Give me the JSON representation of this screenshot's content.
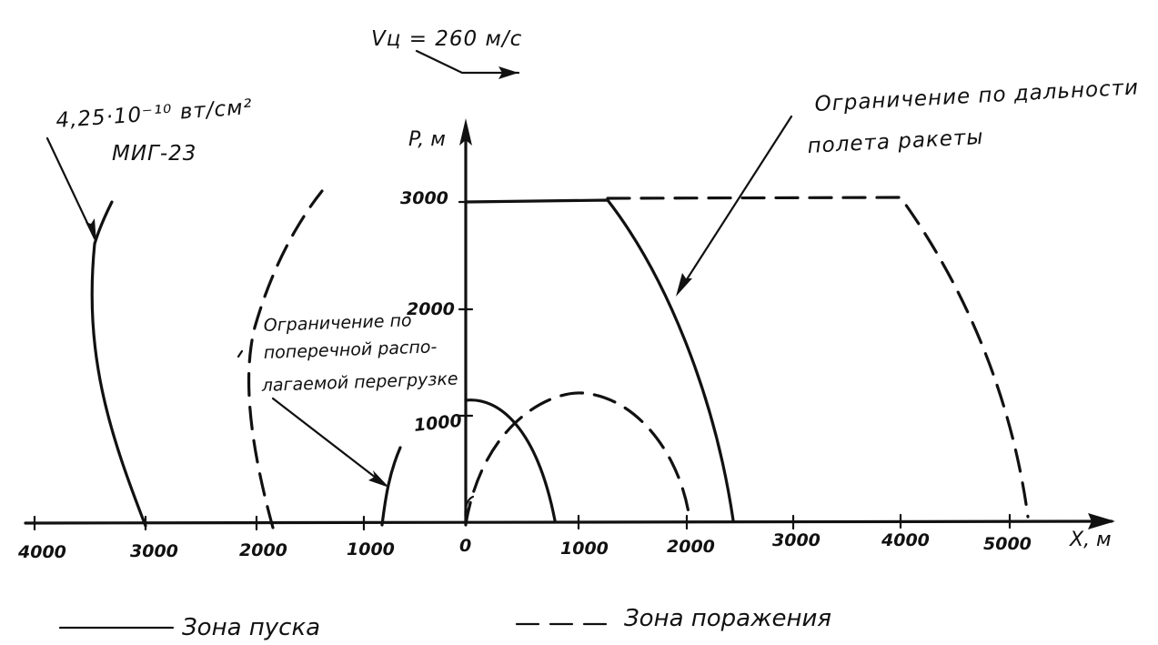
{
  "speed_label": "Vц = 260 м/c",
  "y_axis_label": "P, м",
  "x_axis_label": "X, м",
  "y_ticks": [
    "3000",
    "2000",
    "1000"
  ],
  "x_ticks": [
    "4000",
    "3000",
    "2000",
    "1000",
    "0",
    "1000",
    "2000",
    "3000",
    "4000",
    "5000"
  ],
  "annotations": {
    "target_signature": "4,25·10⁻¹⁰ вт/см²",
    "aircraft": "МИГ-23",
    "range_limit": [
      "Ограничение по дальности",
      "полета ракеты"
    ],
    "overload_limit": [
      "Ограничение по",
      "поперечной распо-",
      "лагаемой перегрузке"
    ]
  },
  "legend": {
    "solid": "Зона пуска",
    "dashed": "Зона поражения"
  },
  "colors": {
    "ink": "#111111",
    "background": "#ffffff"
  }
}
